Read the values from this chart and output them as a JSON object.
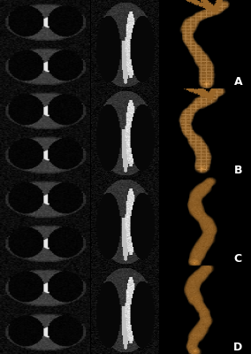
{
  "figure_width": 2.84,
  "figure_height": 4.0,
  "dpi": 100,
  "background_color": "#000000",
  "rows": [
    "A",
    "B",
    "C",
    "D"
  ],
  "label_color": "#ffffff",
  "label_fontsize": 9,
  "label_fontweight": "bold",
  "n_rows": 4,
  "row_labels": [
    "A",
    "B",
    "C",
    "D"
  ],
  "border_color": "#333333",
  "border_linewidth": 0.5
}
